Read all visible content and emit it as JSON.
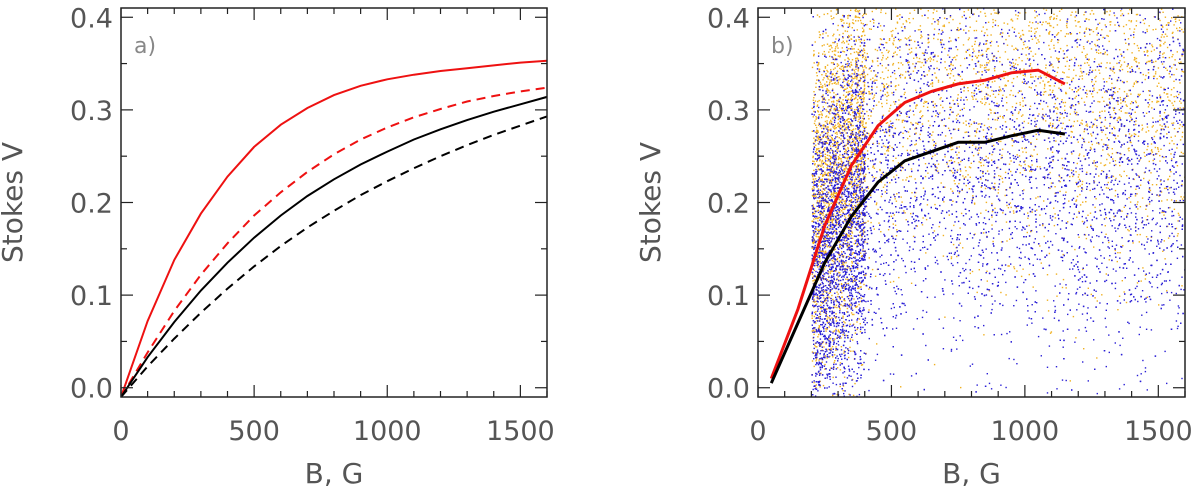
{
  "colors": {
    "frame": "#222222",
    "red": "#ee1111",
    "black": "#000000",
    "scatter_blue": "#2a1fd6",
    "scatter_orange": "#f0b020"
  },
  "chart_data": [
    {
      "type": "line",
      "panel_label": "a)",
      "xlabel": "B, G",
      "ylabel": "Stokes V",
      "xlim": [
        0,
        1600
      ],
      "ylim": [
        -0.01,
        0.41
      ],
      "xticks": [
        0,
        500,
        1000,
        1500
      ],
      "yticks": [
        0.0,
        0.1,
        0.2,
        0.3,
        0.4
      ],
      "xtick_labels": [
        "0",
        "500",
        "1000",
        "1500"
      ],
      "ytick_labels": [
        "0.0",
        "0.1",
        "0.2",
        "0.3",
        "0.4"
      ],
      "grid": false,
      "series": [
        {
          "color": "red",
          "style": "solid",
          "x": [
            0,
            100,
            200,
            300,
            400,
            500,
            600,
            700,
            800,
            900,
            1000,
            1100,
            1200,
            1300,
            1400,
            1500,
            1600
          ],
          "y": [
            -0.01,
            0.072,
            0.138,
            0.188,
            0.228,
            0.26,
            0.284,
            0.302,
            0.316,
            0.326,
            0.333,
            0.338,
            0.342,
            0.345,
            0.348,
            0.351,
            0.353
          ]
        },
        {
          "color": "red",
          "style": "dashed",
          "x": [
            0,
            100,
            200,
            300,
            400,
            500,
            600,
            700,
            800,
            900,
            1000,
            1100,
            1200,
            1300,
            1400,
            1500,
            1600
          ],
          "y": [
            -0.01,
            0.038,
            0.083,
            0.122,
            0.156,
            0.186,
            0.211,
            0.233,
            0.252,
            0.268,
            0.281,
            0.292,
            0.301,
            0.309,
            0.315,
            0.32,
            0.324
          ]
        },
        {
          "color": "black",
          "style": "solid",
          "x": [
            0,
            100,
            200,
            300,
            400,
            500,
            600,
            700,
            800,
            900,
            1000,
            1100,
            1200,
            1300,
            1400,
            1500,
            1600
          ],
          "y": [
            -0.01,
            0.033,
            0.071,
            0.105,
            0.135,
            0.162,
            0.186,
            0.207,
            0.225,
            0.241,
            0.255,
            0.268,
            0.279,
            0.289,
            0.298,
            0.306,
            0.314
          ]
        },
        {
          "color": "black",
          "style": "dashed",
          "x": [
            0,
            100,
            200,
            300,
            400,
            500,
            600,
            700,
            800,
            900,
            1000,
            1100,
            1200,
            1300,
            1400,
            1500,
            1600
          ],
          "y": [
            -0.01,
            0.023,
            0.053,
            0.081,
            0.107,
            0.131,
            0.153,
            0.173,
            0.191,
            0.208,
            0.223,
            0.237,
            0.25,
            0.262,
            0.273,
            0.283,
            0.293
          ]
        }
      ]
    },
    {
      "type": "scatter",
      "panel_label": "b)",
      "xlabel": "B, G",
      "ylabel": "Stokes V",
      "xlim": [
        0,
        1600
      ],
      "ylim": [
        -0.01,
        0.41
      ],
      "xticks": [
        0,
        500,
        1000,
        1500
      ],
      "yticks": [
        0.0,
        0.1,
        0.2,
        0.3,
        0.4
      ],
      "xtick_labels": [
        "0",
        "500",
        "1000",
        "1500"
      ],
      "ytick_labels": [
        "0.0",
        "0.1",
        "0.2",
        "0.3",
        "0.4"
      ],
      "grid": false,
      "scatter_clouds": [
        {
          "color": "scatter_orange",
          "x_min": 200,
          "x_max": 1600,
          "center_y": 0.34,
          "spread_y": 0.1,
          "dense_x_below": 400,
          "description_count": 5000
        },
        {
          "color": "scatter_blue",
          "x_min": 200,
          "x_max": 1600,
          "center_y": 0.24,
          "spread_y": 0.1,
          "dense_x_below": 400,
          "description_count": 7000
        }
      ],
      "series": [
        {
          "color": "red",
          "style": "solid",
          "x": [
            50,
            150,
            250,
            350,
            450,
            550,
            650,
            750,
            850,
            950,
            1050,
            1150
          ],
          "y": [
            0.01,
            0.085,
            0.175,
            0.24,
            0.283,
            0.308,
            0.32,
            0.328,
            0.332,
            0.34,
            0.343,
            0.328
          ]
        },
        {
          "color": "black",
          "style": "solid",
          "x": [
            50,
            150,
            250,
            350,
            450,
            550,
            650,
            750,
            850,
            950,
            1050,
            1150
          ],
          "y": [
            0.005,
            0.07,
            0.135,
            0.185,
            0.222,
            0.245,
            0.255,
            0.265,
            0.265,
            0.272,
            0.278,
            0.274
          ]
        }
      ]
    }
  ]
}
